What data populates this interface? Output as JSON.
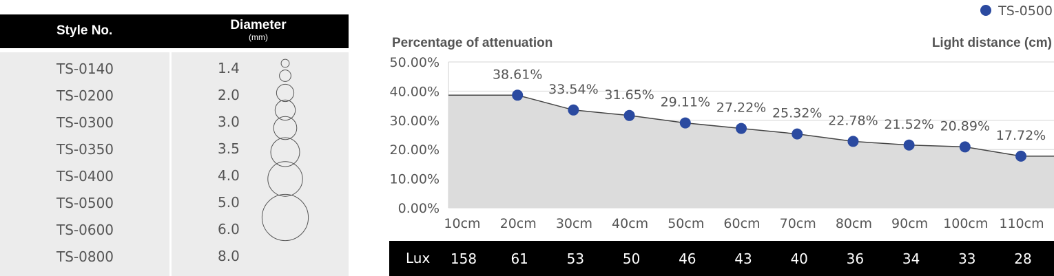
{
  "table": {
    "header": {
      "style_label": "Style No.",
      "diameter_label": "Diameter",
      "diameter_unit": "(mm)"
    },
    "rows": [
      {
        "style": "TS-0140",
        "diameter": "1.4"
      },
      {
        "style": "TS-0200",
        "diameter": "2.0"
      },
      {
        "style": "TS-0300",
        "diameter": "3.0"
      },
      {
        "style": "TS-0350",
        "diameter": "3.5"
      },
      {
        "style": "TS-0400",
        "diameter": "4.0"
      },
      {
        "style": "TS-0500",
        "diameter": "5.0"
      },
      {
        "style": "TS-0600",
        "diameter": "6.0"
      },
      {
        "style": "TS-0800",
        "diameter": "8.0"
      }
    ]
  },
  "chart_data": {
    "type": "area",
    "ylabel": "Percentage of attenuation",
    "xlabel": "Light distance (cm)",
    "legend_position": "top-right",
    "ylim": [
      0,
      50
    ],
    "yticks": [
      "0.00%",
      "10.00%",
      "20.00%",
      "30.00%",
      "40.00%",
      "50.00%"
    ],
    "categories": [
      "10cm",
      "20cm",
      "30cm",
      "40cm",
      "50cm",
      "60cm",
      "70cm",
      "80cm",
      "90cm",
      "100cm",
      "110cm"
    ],
    "series": [
      {
        "name": "TS-0500",
        "color": "#2b4aa0",
        "values": [
          38.61,
          38.61,
          33.54,
          31.65,
          29.11,
          27.22,
          25.32,
          22.78,
          21.52,
          20.89,
          17.72
        ],
        "data_labels": [
          "",
          "38.61%",
          "33.54%",
          "31.65%",
          "29.11%",
          "27.22%",
          "25.32%",
          "22.78%",
          "21.52%",
          "20.89%",
          "17.72%"
        ]
      }
    ],
    "area_color": "#dcdcdc",
    "grid": true,
    "lux": {
      "label": "Lux",
      "values": [
        158,
        61,
        53,
        50,
        46,
        43,
        40,
        36,
        34,
        33,
        28
      ]
    }
  }
}
